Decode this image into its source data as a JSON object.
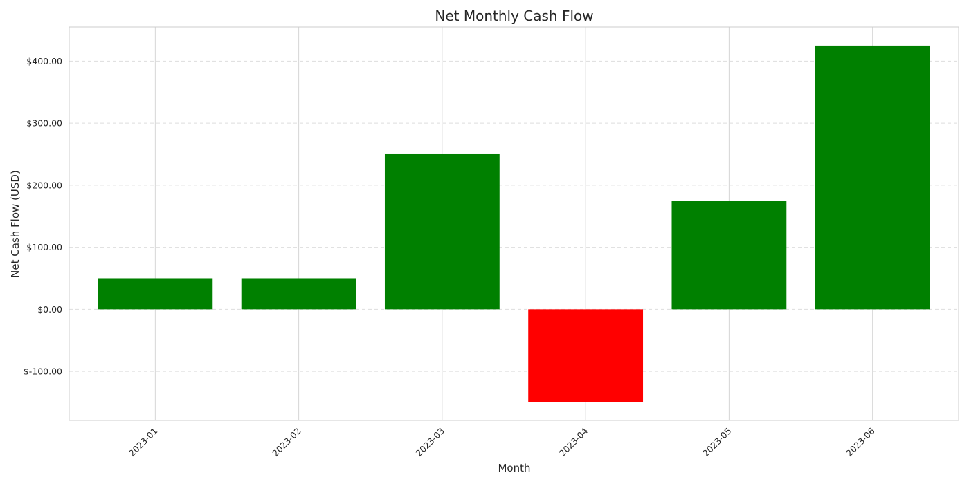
{
  "chart_data": {
    "type": "bar",
    "title": "Net Monthly Cash Flow",
    "xlabel": "Month",
    "ylabel": "Net Cash Flow (USD)",
    "categories": [
      "2023-01",
      "2023-02",
      "2023-03",
      "2023-04",
      "2023-05",
      "2023-06"
    ],
    "values": [
      50,
      50,
      250,
      -150,
      175,
      425
    ],
    "ylim": [
      -179,
      455
    ],
    "yticks": [
      -100,
      0,
      100,
      200,
      300,
      400
    ],
    "ytick_labels": [
      "$-100.00",
      "$0.00",
      "$100.00",
      "$200.00",
      "$300.00",
      "$400.00"
    ],
    "grid": true,
    "colors": {
      "positive": "#008000",
      "negative": "#ff0000",
      "grid": "#dddddd",
      "vgrid": "#d6d6d6",
      "frame": "#cccccc",
      "text": "#262626"
    }
  }
}
